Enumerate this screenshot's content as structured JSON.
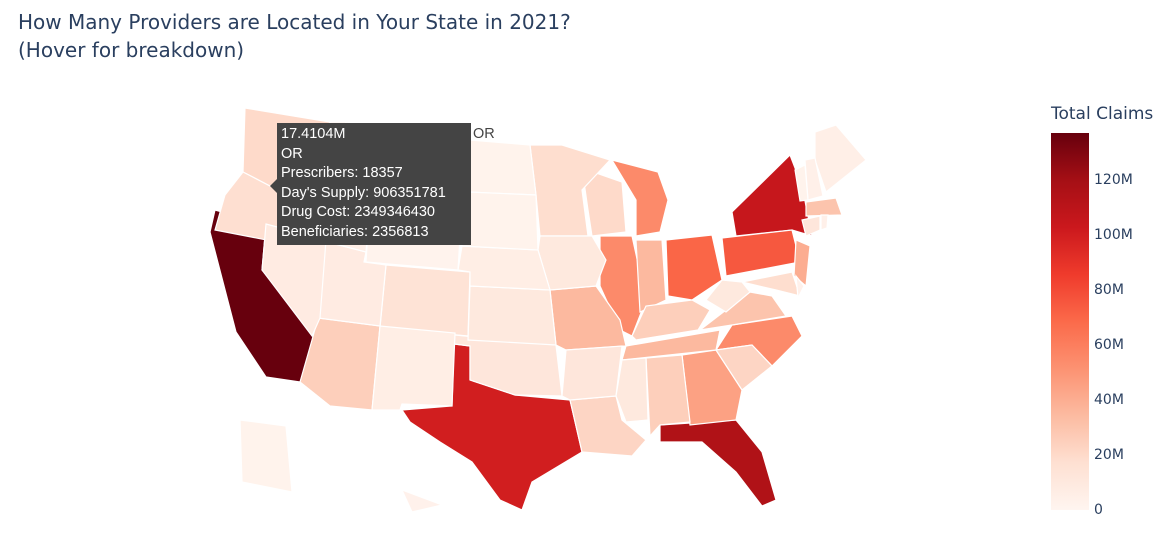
{
  "title_line1": "How Many Providers are Located in Your State in 2021?",
  "title_line2": "(Hover for breakdown)",
  "chart_data": {
    "type": "choropleth",
    "scope": "usa",
    "locationmode": "USA-states",
    "colorscale": "Reds",
    "colorscale_stops": [
      "#fff5f0",
      "#fee0d2",
      "#fcbba1",
      "#fc9272",
      "#fb6a4a",
      "#ef3b2c",
      "#cb181d",
      "#a50f15",
      "#67000d"
    ],
    "colorbar_title": "Total Claims",
    "zrange": [
      0,
      137000000
    ],
    "colorbar_ticks": [
      {
        "value": 0,
        "label": "0"
      },
      {
        "value": 20000000,
        "label": "20M"
      },
      {
        "value": 40000000,
        "label": "40M"
      },
      {
        "value": 60000000,
        "label": "60M"
      },
      {
        "value": 80000000,
        "label": "80M"
      },
      {
        "value": 100000000,
        "label": "100M"
      },
      {
        "value": 120000000,
        "label": "120M"
      }
    ],
    "values": {
      "CA": 137000000,
      "TX": 100000000,
      "FL": 115000000,
      "NY": 105000000,
      "PA": 75000000,
      "OH": 70000000,
      "IL": 55000000,
      "MI": 55000000,
      "NC": 55000000,
      "GA": 45000000,
      "NJ": 40000000,
      "TN": 35000000,
      "VA": 30000000,
      "MO": 35000000,
      "IN": 35000000,
      "MA": 30000000,
      "AZ": 25000000,
      "WA": 20000000,
      "KY": 25000000,
      "AL": 25000000,
      "LA": 22000000,
      "SC": 22000000,
      "WI": 20000000,
      "MN": 18000000,
      "MD": 18000000,
      "CO": 15000000,
      "OK": 12000000,
      "AR": 12000000,
      "MS": 10000000,
      "IA": 10000000,
      "KS": 10000000,
      "OR": 17410400,
      "CT": 12000000,
      "UT": 8000000,
      "NV": 8000000,
      "NM": 6000000,
      "NE": 6000000,
      "ID": 5000000,
      "WV": 10000000,
      "ME": 5000000,
      "NH": 4000000,
      "VT": 2000000,
      "RI": 4000000,
      "DE": 3000000,
      "MT": 3000000,
      "WY": 1500000,
      "ND": 2000000,
      "SD": 2000000,
      "AK": 2000000,
      "HI": 3000000
    }
  },
  "tooltip": {
    "state": "OR",
    "value": "17.4104M",
    "location": "OR",
    "prescribers": "Prescribers: 18357",
    "days_supply": "Day's Supply: 906351781",
    "drug_cost": "Drug Cost: 2349346430",
    "beneficiaries": "Beneficiaries: 2356813",
    "trace_name": "OR"
  }
}
